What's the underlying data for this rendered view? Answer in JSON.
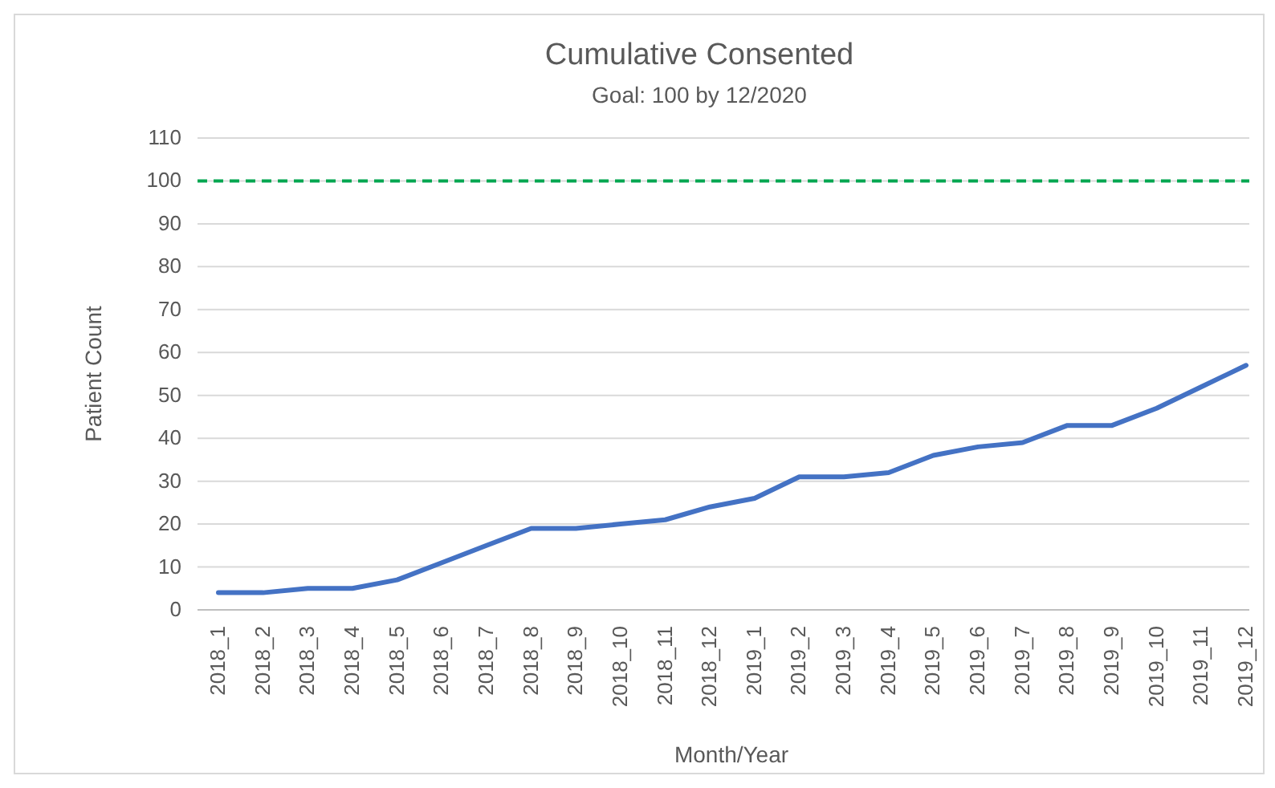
{
  "chart_data": {
    "type": "line",
    "title": "Cumulative Consented",
    "subtitle": "Goal: 100 by 12/2020",
    "xlabel": "Month/Year",
    "ylabel": "Patient Count",
    "categories": [
      "2018_1",
      "2018_2",
      "2018_3",
      "2018_4",
      "2018_5",
      "2018_6",
      "2018_7",
      "2018_8",
      "2018_9",
      "2018_10",
      "2018_11",
      "2018_12",
      "2019_1",
      "2019_2",
      "2019_3",
      "2019_4",
      "2019_5",
      "2019_6",
      "2019_7",
      "2019_8",
      "2019_9",
      "2019_10",
      "2019_11",
      "2019_12"
    ],
    "series": [
      {
        "color": "#4472c4",
        "values": [
          4,
          4,
          5,
          5,
          7,
          11,
          15,
          19,
          19,
          20,
          21,
          24,
          26,
          31,
          31,
          32,
          36,
          38,
          39,
          43,
          43,
          47,
          52,
          57
        ]
      }
    ],
    "ylim": [
      0,
      110
    ],
    "yticks": [
      0,
      10,
      20,
      30,
      40,
      50,
      60,
      70,
      80,
      90,
      100,
      110
    ],
    "grid": "y",
    "marker": "none",
    "line_style": "solid",
    "ref_lines": [
      {
        "axis": "y",
        "value": 100,
        "color": "#00a650",
        "line_style": "dashed"
      }
    ]
  }
}
